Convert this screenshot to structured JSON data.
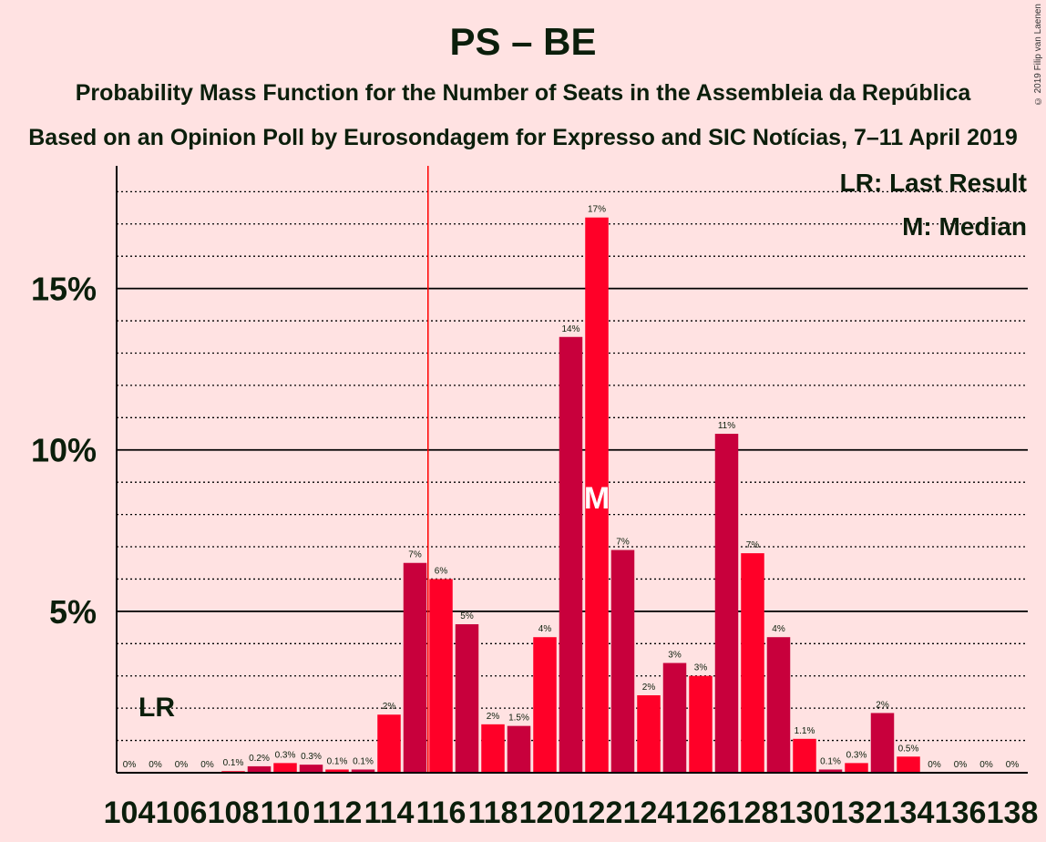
{
  "title": "PS – BE",
  "subtitle": "Probability Mass Function for the Number of Seats in the Assembleia da República",
  "subtitle2": "Based on an Opinion Poll by Eurosondagem for Expresso and SIC Notícias, 7–11 April 2019",
  "copyright": "© 2019 Filip van Laenen",
  "legend": {
    "last_result": "LR: Last Result",
    "median": "M: Median"
  },
  "markers": {
    "last_result_label": "LR",
    "median_label": "M"
  },
  "colors": {
    "background": "#FFE2E2",
    "bar_dark": "#C8003C",
    "bar_light": "#FF0028",
    "text": "#0B1E0B",
    "last_result_line": "#FF0000"
  },
  "chart_data": {
    "type": "bar",
    "x": [
      104,
      105,
      106,
      107,
      108,
      109,
      110,
      111,
      112,
      113,
      114,
      115,
      116,
      117,
      118,
      119,
      120,
      121,
      122,
      123,
      124,
      125,
      126,
      127,
      128,
      129,
      130,
      131,
      132,
      133,
      134,
      135,
      136,
      137,
      138
    ],
    "values": [
      0,
      0,
      0,
      0,
      0.05,
      0.2,
      0.3,
      0.25,
      0.1,
      0.1,
      1.8,
      6.5,
      6.0,
      4.6,
      1.5,
      1.45,
      4.2,
      13.5,
      17.2,
      6.9,
      2.4,
      3.4,
      3.0,
      10.5,
      6.8,
      4.2,
      1.05,
      0.1,
      0.3,
      1.85,
      0.5,
      0,
      0,
      0,
      0
    ],
    "labels": [
      "0%",
      "0%",
      "0%",
      "0%",
      "0.1%",
      "0.2%",
      "0.3%",
      "0.3%",
      "0.1%",
      "0.1%",
      "2%",
      "7%",
      "6%",
      "5%",
      "2%",
      "1.5%",
      "4%",
      "14%",
      "17%",
      "7%",
      "2%",
      "3%",
      "3%",
      "11%",
      "7%",
      "4%",
      "1.1%",
      "0.1%",
      "0.3%",
      "2%",
      "0.5%",
      "0%",
      "0%",
      "0%",
      "0%"
    ],
    "x_tick_labels": [
      "104",
      "106",
      "108",
      "110",
      "112",
      "114",
      "116",
      "118",
      "120",
      "122",
      "124",
      "126",
      "128",
      "130",
      "132",
      "134",
      "136",
      "138"
    ],
    "y_tick_labels": [
      "5%",
      "10%",
      "15%"
    ],
    "yticks": [
      5,
      10,
      15
    ],
    "ylim": [
      0,
      18.8
    ],
    "last_result": 115,
    "median": 122,
    "xlabel": "",
    "ylabel": ""
  }
}
